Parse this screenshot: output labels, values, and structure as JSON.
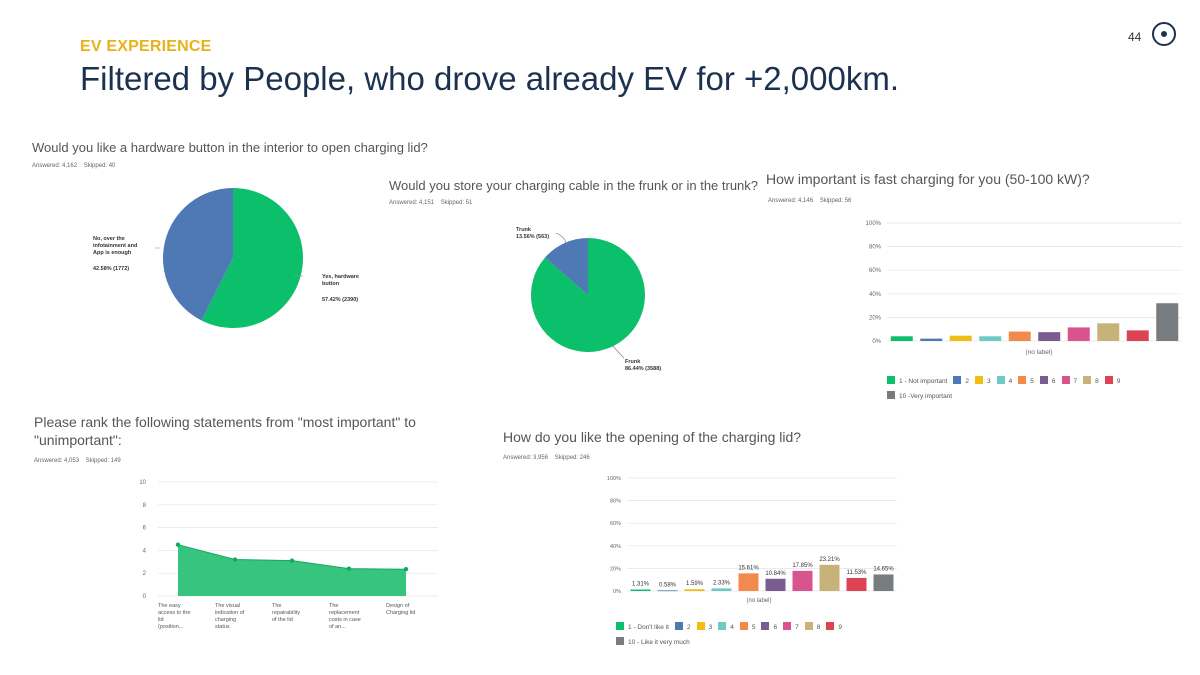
{
  "header": {
    "section": "EV EXPERIENCE",
    "title": "Filtered by People, who drove already EV for +2,000km.",
    "page_number": "44"
  },
  "colors": {
    "green": "#0bbf6b",
    "blue": "#4e79b5",
    "navy": "#1c3150",
    "yellow_label": "#e8b21a"
  },
  "q1": {
    "question": "Would you like a hardware button in the interior to open charging lid?",
    "answered": "Answered: 4,162",
    "skipped": "Skipped: 40",
    "slice_no_label_1": "No, over the",
    "slice_no_label_2": "infotainment and",
    "slice_no_label_3": "App is enough",
    "slice_no_value": "42.58% (1772)",
    "slice_yes_label_1": "Yes, hardware",
    "slice_yes_label_2": "button",
    "slice_yes_value": "57.42% (2390)"
  },
  "q2": {
    "question": "Would you store your charging cable in the frunk or in the trunk?",
    "answered": "Answered: 4,151",
    "skipped": "Skipped: 51",
    "trunk_label": "Trunk",
    "trunk_value": "13.56% (563)",
    "frunk_label": "Frunk",
    "frunk_value": "86.44% (3588)"
  },
  "q3": {
    "question": "How important is fast charging for you (50-100 kW)?",
    "answered": "Answered: 4,146",
    "skipped": "Skipped: 56",
    "xlabel": "(no label)",
    "legend": [
      "1 - Not important",
      "2",
      "3",
      "4",
      "5",
      "6",
      "7",
      "8",
      "9",
      "10 -Very important"
    ]
  },
  "q4": {
    "question_line1": "Please rank the following statements from \"most important\" to",
    "question_line2": "\"unimportant\":",
    "answered": "Answered: 4,053",
    "skipped": "Skipped: 149",
    "cat_lines": [
      [
        "The easy",
        "access to the",
        "lid",
        "(position..."
      ],
      [
        "The visual",
        "indication of",
        "charging",
        "status"
      ],
      [
        "The",
        "repairability",
        "of the lid"
      ],
      [
        "The",
        "replacement",
        "costs in case",
        "of an..."
      ],
      [
        "Design of",
        "Charging lid"
      ]
    ]
  },
  "q5": {
    "question": "How do you like the opening of the charging lid?",
    "answered": "Answered: 3,956",
    "skipped": "Skipped: 246",
    "xlabel": "(no label)",
    "legend": [
      "1 - Don't like it",
      "2",
      "3",
      "4",
      "5",
      "6",
      "7",
      "8",
      "9",
      "10 - Like it very much"
    ]
  },
  "chart_data": [
    {
      "type": "pie",
      "title": "Would you like a hardware button in the interior to open charging lid?",
      "labels": [
        "Yes, hardware button",
        "No, over the infotainment and App is enough"
      ],
      "values": [
        57.42,
        42.58
      ],
      "counts": [
        2390,
        1772
      ],
      "colors": [
        "#0bbf6b",
        "#4e79b5"
      ]
    },
    {
      "type": "pie",
      "title": "Would you store your charging cable in the frunk or in the trunk?",
      "labels": [
        "Frunk",
        "Trunk"
      ],
      "values": [
        86.44,
        13.56
      ],
      "counts": [
        3588,
        563
      ],
      "colors": [
        "#0bbf6b",
        "#4e79b5"
      ]
    },
    {
      "type": "bar",
      "title": "How important is fast charging for you (50-100 kW)?",
      "categories": [
        "1 - Not important",
        "2",
        "3",
        "4",
        "5",
        "6",
        "7",
        "8",
        "9",
        "10 -Very important"
      ],
      "values": [
        4,
        2,
        4.5,
        4,
        8,
        7.5,
        11.5,
        15,
        9,
        32
      ],
      "colors": [
        "#0bbf6b",
        "#4e79b5",
        "#f2bd14",
        "#6ccbc4",
        "#f28a4e",
        "#7a5c91",
        "#d9538f",
        "#c7b27a",
        "#dd4453",
        "#777c80"
      ],
      "yticks": [
        "100%",
        "80%",
        "60%",
        "40%",
        "20%",
        "0%"
      ],
      "ylim": [
        0,
        100
      ]
    },
    {
      "type": "area",
      "title": "Please rank the following statements from \"most important\" to \"unimportant\":",
      "categories": [
        "The easy access to the lid (position...",
        "The visual indication of charging status",
        "The repairability of the lid",
        "The replacement costs in case of an...",
        "Design of Charging lid"
      ],
      "values": [
        4.5,
        3.2,
        3.1,
        2.4,
        2.35
      ],
      "yticks": [
        "10",
        "8",
        "6",
        "4",
        "2",
        "0"
      ],
      "ylim": [
        0,
        10
      ]
    },
    {
      "type": "bar",
      "title": "How do you like the opening of the charging lid?",
      "categories": [
        "1 - Don't like it",
        "2",
        "3",
        "4",
        "5",
        "6",
        "7",
        "8",
        "9",
        "10 - Like it very much"
      ],
      "values": [
        1.31,
        0.58,
        1.59,
        2.33,
        15.61,
        10.84,
        17.85,
        23.21,
        11.53,
        14.65
      ],
      "value_labels": [
        "1.31%",
        "0.58%",
        "1.59%",
        "2.33%",
        "15.61%",
        "10.84%",
        "17.85%",
        "23.21%",
        "11.53%",
        "14.65%"
      ],
      "colors": [
        "#0bbf6b",
        "#4e79b5",
        "#f2bd14",
        "#6ccbc4",
        "#f28a4e",
        "#7a5c91",
        "#d9538f",
        "#c7b27a",
        "#dd4453",
        "#777c80"
      ],
      "yticks": [
        "100%",
        "80%",
        "60%",
        "40%",
        "20%",
        "0%"
      ],
      "ylim": [
        0,
        100
      ]
    }
  ]
}
